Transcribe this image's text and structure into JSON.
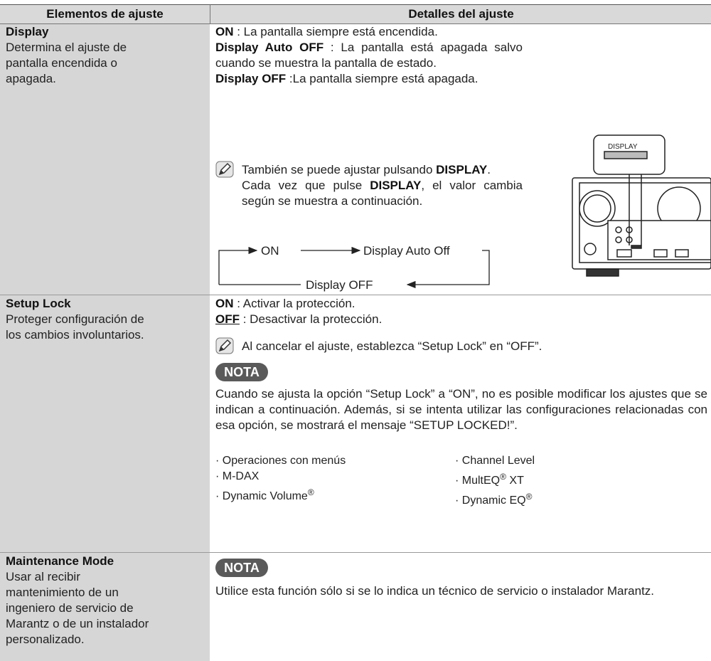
{
  "table": {
    "headers": [
      "Elementos de ajuste",
      "Detalles del ajuste"
    ],
    "rows": [
      {
        "name": "Display",
        "description": [
          "Determina el ajuste de",
          "pantalla encendida o",
          "apagada."
        ],
        "details": {
          "options": [
            [
              {
                "text": "ON",
                "style": "bold"
              },
              {
                "text": " : La pantalla siempre está encendida."
              }
            ],
            [
              {
                "text": "Display Auto OFF",
                "style": "bold"
              },
              {
                "text": " : La pantalla está apagada salvo cuando se muestra la pantalla de estado."
              }
            ],
            [
              {
                "text": "Display  OFF",
                "style": "bold"
              },
              {
                "text": " :La pantalla siempre está apagada."
              }
            ]
          ],
          "tip": [
            [
              {
                "text": "También se puede ajustar pulsando "
              },
              {
                "text": "DISPLAY",
                "style": "bold"
              },
              {
                "text": "."
              }
            ],
            [
              {
                "text": "Cada vez que pulse "
              },
              {
                "text": "DISPLAY",
                "style": "bold"
              },
              {
                "text": ", el valor cambia según se muestra a continuación."
              }
            ]
          ],
          "cycle": [
            "ON",
            "Display Auto Off",
            "Display OFF"
          ],
          "illustration_label": "DISPLAY"
        }
      },
      {
        "name": "Setup Lock",
        "description": [
          "Proteger configuración de",
          "los cambios involuntarios."
        ],
        "details": {
          "options": [
            [
              {
                "text": "ON",
                "style": "bold"
              },
              {
                "text": " : Activar la protección."
              }
            ],
            [
              {
                "text": "OFF",
                "style": "bold-underline"
              },
              {
                "text": " : Desactivar la protección."
              }
            ]
          ],
          "tip": [
            [
              {
                "text": "Al cancelar el ajuste, establezca “Setup Lock” en “OFF”."
              }
            ]
          ],
          "note_label": "NOTA",
          "note": [
            {
              "text": "Cuando se ajusta la opción “Setup Lock” a “ON”, no es posible modificar los ajustes que se indican a continuación. Además, si se intenta utilizar las configuraciones relacionadas con esa opción, se mostrará el mensaje “SETUP LOCKED!”."
            }
          ],
          "list_left": [
            [
              {
                "text": "· Operaciones con menús"
              }
            ],
            [
              {
                "text": "· M-DAX"
              }
            ],
            [
              {
                "text": "· Dynamic Volume"
              },
              {
                "text": "®",
                "style": "sup"
              }
            ]
          ],
          "list_right": [
            [
              {
                "text": "· Channel Level"
              }
            ],
            [
              {
                "text": "· MultEQ"
              },
              {
                "text": "®",
                "style": "sup"
              },
              {
                "text": " XT"
              }
            ],
            [
              {
                "text": "· Dynamic EQ"
              },
              {
                "text": "®",
                "style": "sup"
              }
            ]
          ]
        }
      },
      {
        "name": "Maintenance Mode",
        "description": [
          "Usar al recibir",
          "mantenimiento de un",
          "ingeniero de servicio de",
          "Marantz o de un instalador",
          "personalizado."
        ],
        "details": {
          "note_label": "NOTA",
          "note": [
            {
              "text": "Utilice esta función sólo si se lo indica un técnico de servicio o instalador Marantz."
            }
          ]
        }
      }
    ]
  }
}
